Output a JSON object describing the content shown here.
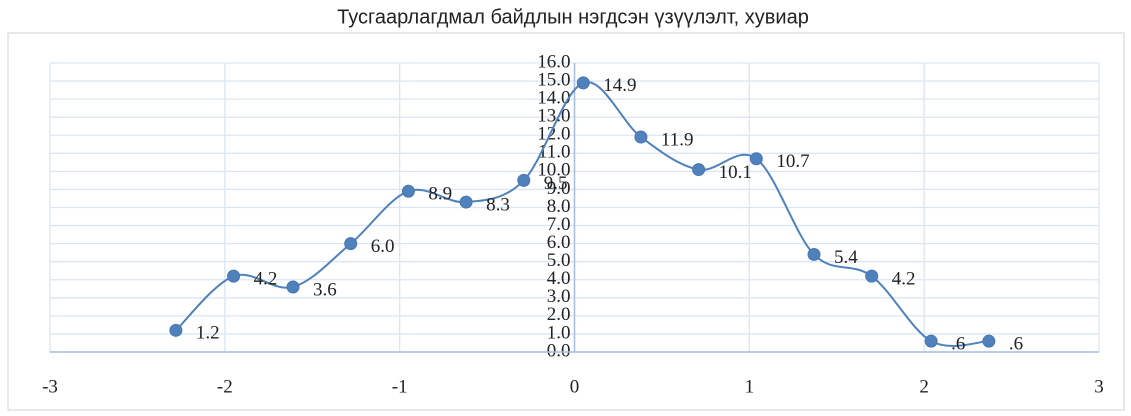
{
  "chart_data": {
    "type": "scatter",
    "title": "Тусгаарлагдмал байдлын нэгдсэн үзүүлэлт, хувиар",
    "series": [
      {
        "color": "#4f81bd",
        "x": [
          -2.28,
          -1.95,
          -1.61,
          -1.28,
          -0.95,
          -0.62,
          -0.29,
          0.05,
          0.38,
          0.71,
          1.04,
          1.37,
          1.7,
          2.04,
          2.37
        ],
        "values": [
          1.2,
          4.2,
          3.6,
          6.0,
          8.9,
          8.3,
          9.5,
          14.9,
          11.9,
          10.1,
          10.7,
          5.4,
          4.2,
          0.6,
          0.6
        ],
        "value_labels": [
          "1.2",
          "4.2",
          "3.6",
          "6.0",
          "8.9",
          "8.3",
          "9.5",
          "14.9",
          "11.9",
          "10.1",
          "10.7",
          "5.4",
          "4.2",
          ".6",
          ".6"
        ]
      }
    ],
    "xlim": [
      -3,
      3
    ],
    "xticks": [
      -3,
      -2,
      -1,
      0,
      1,
      2,
      3
    ],
    "ylim": [
      0,
      16
    ],
    "yticks": [
      {
        "value": 0,
        "label": "0.0"
      },
      {
        "value": 1,
        "label": "1.0"
      },
      {
        "value": 2,
        "label": "2.0"
      },
      {
        "value": 3,
        "label": "3.0"
      },
      {
        "value": 4,
        "label": "4.0"
      },
      {
        "value": 5,
        "label": "5.0"
      },
      {
        "value": 6,
        "label": "6.0"
      },
      {
        "value": 7,
        "label": "7.0"
      },
      {
        "value": 8,
        "label": "8.0"
      },
      {
        "value": 9,
        "label": "9.0"
      },
      {
        "value": 10,
        "label": "10.0"
      },
      {
        "value": 11,
        "label": "11.0"
      },
      {
        "value": 12,
        "label": "12.0"
      },
      {
        "value": 13,
        "label": "13.0"
      },
      {
        "value": 14,
        "label": "14.0"
      },
      {
        "value": 15,
        "label": "15.0"
      },
      {
        "value": 16,
        "label": "16.0"
      }
    ],
    "grid": true,
    "smooth": true
  }
}
